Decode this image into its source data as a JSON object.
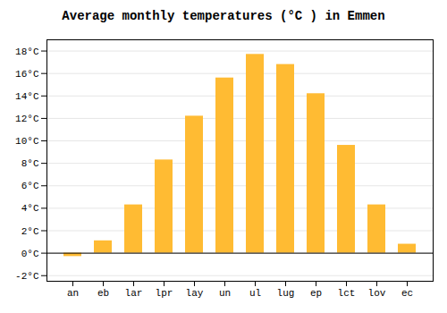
{
  "chart_data": {
    "type": "bar",
    "title": "Average monthly temperatures (°C ) in Emmen",
    "categories": [
      "an",
      "eb",
      "lar",
      "lpr",
      "lay",
      "un",
      "ul",
      "lug",
      "ep",
      "lct",
      "lov",
      "ec"
    ],
    "values": [
      -0.3,
      1.1,
      4.3,
      8.3,
      12.2,
      15.6,
      17.7,
      16.8,
      14.2,
      9.6,
      4.3,
      0.8
    ],
    "color": "#FFBB33",
    "ylim": [
      -2.5,
      19
    ],
    "yticks": [
      {
        "value": -2,
        "label": "-2°C"
      },
      {
        "value": 0,
        "label": "0°C"
      },
      {
        "value": 2,
        "label": "2°C"
      },
      {
        "value": 4,
        "label": "4°C"
      },
      {
        "value": 6,
        "label": "6°C"
      },
      {
        "value": 8,
        "label": "8°C"
      },
      {
        "value": 10,
        "label": "10°C"
      },
      {
        "value": 12,
        "label": "12°C"
      },
      {
        "value": 14,
        "label": "14°C"
      },
      {
        "value": 16,
        "label": "16°C"
      },
      {
        "value": 18,
        "label": "18°C"
      }
    ],
    "grid": true
  }
}
